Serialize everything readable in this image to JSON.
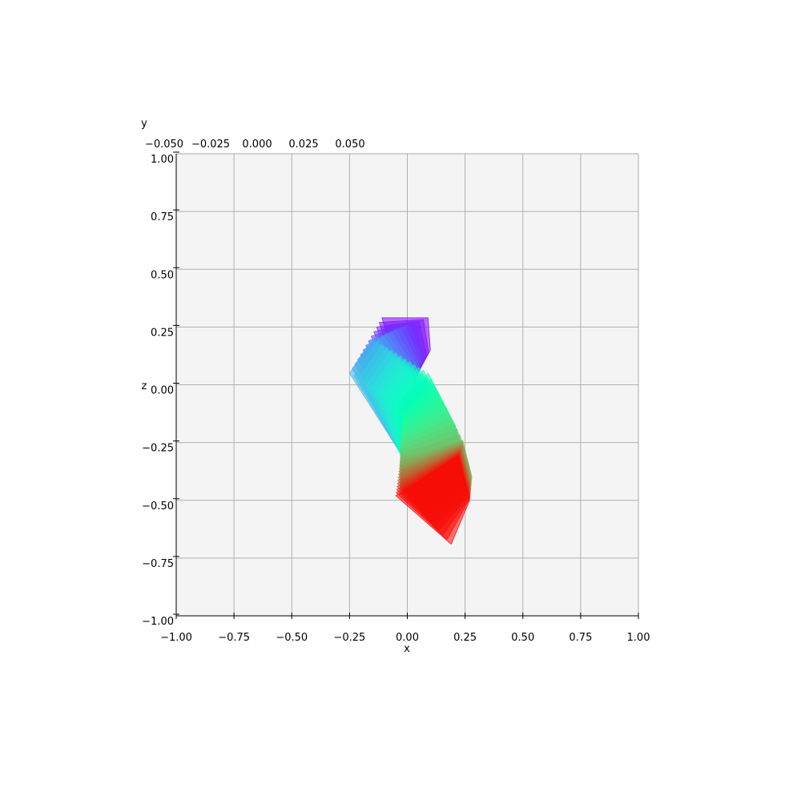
{
  "chart_data": {
    "type": "3d-polygon-sweep",
    "view": "top-down projection (x horizontal, z vertical)",
    "xlabel": "x",
    "zlabel": "z",
    "ylabel": "y",
    "xlim": [
      -1,
      1
    ],
    "zlim": [
      -1,
      1
    ],
    "x_ticks": [
      "−1.00",
      "−0.75",
      "−0.50",
      "−0.25",
      "0.00",
      "0.25",
      "0.50",
      "0.75",
      "1.00"
    ],
    "z_ticks": [
      "1.00",
      "0.75",
      "0.50",
      "0.25",
      "0.00",
      "−0.25",
      "−0.50",
      "−0.75",
      "−1.00"
    ],
    "y_ticks_overlapping": [
      "−0.050",
      "−0.025",
      "0.000",
      "0.025",
      "0.050"
    ],
    "grid": true,
    "colormap": "rainbow",
    "keyframes": [
      [
        [
          -0.11,
          0.29
        ],
        [
          0.09,
          0.29
        ],
        [
          0.1,
          0.15
        ],
        [
          -0.01,
          -0.05
        ]
      ],
      [
        [
          -0.25,
          0.05
        ],
        [
          -0.15,
          0.2
        ],
        [
          0.0,
          0.03
        ],
        [
          -0.04,
          -0.28
        ]
      ],
      [
        [
          -0.02,
          -0.1
        ],
        [
          0.09,
          0.05
        ],
        [
          0.21,
          -0.18
        ],
        [
          -0.03,
          -0.3
        ]
      ],
      [
        [
          -0.03,
          -0.32
        ],
        [
          0.24,
          -0.24
        ],
        [
          0.28,
          -0.4
        ],
        [
          -0.03,
          -0.45
        ]
      ],
      [
        [
          -0.05,
          -0.48
        ],
        [
          0.22,
          -0.31
        ],
        [
          0.27,
          -0.5
        ],
        [
          0.19,
          -0.69
        ]
      ]
    ]
  }
}
